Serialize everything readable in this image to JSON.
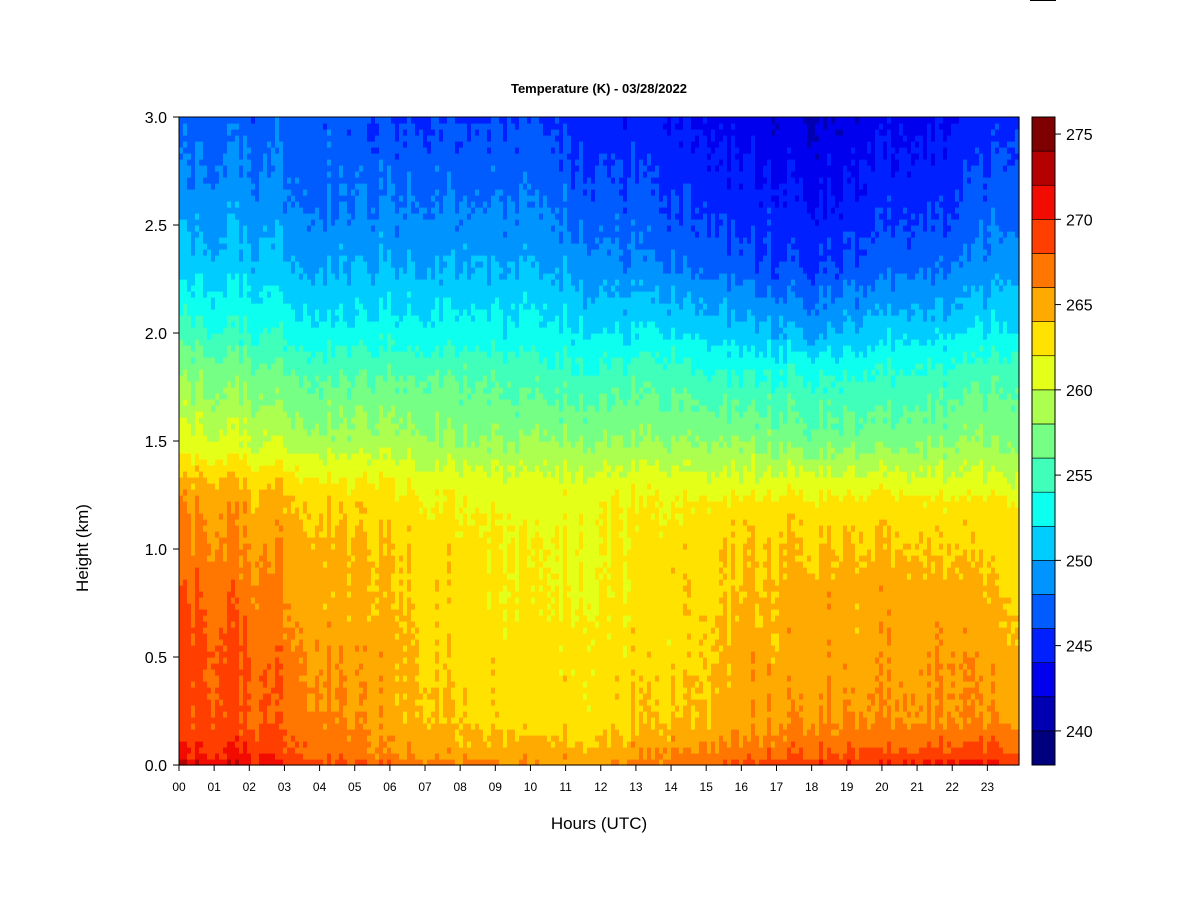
{
  "chart_data": {
    "type": "heatmap",
    "title": "Temperature (K) - 03/28/2022",
    "xlabel": "Hours (UTC)",
    "ylabel": "Height (km)",
    "xlim": [
      0,
      23.9
    ],
    "ylim": [
      0.0,
      3.0
    ],
    "x_tick_labels": [
      "00",
      "01",
      "02",
      "03",
      "04",
      "05",
      "06",
      "07",
      "08",
      "09",
      "10",
      "11",
      "12",
      "13",
      "14",
      "15",
      "16",
      "17",
      "18",
      "19",
      "20",
      "21",
      "22",
      "23"
    ],
    "y_tick_labels": [
      "0.0",
      "0.5",
      "1.0",
      "1.5",
      "2.0",
      "2.5",
      "3.0"
    ],
    "colorbar": {
      "levels": [
        238,
        276
      ],
      "step": 2,
      "tick_labels": [
        "240",
        "245",
        "250",
        "255",
        "260",
        "265",
        "270",
        "275"
      ],
      "colors": [
        "#00007f",
        "#0000b2",
        "#0000ee",
        "#0020ff",
        "#005cff",
        "#0094ff",
        "#00ccff",
        "#0cffef",
        "#3fffbb",
        "#76ff85",
        "#adff4f",
        "#e4ff18",
        "#ffe200",
        "#ffaa00",
        "#ff7700",
        "#ff3f00",
        "#f20c00",
        "#b50000",
        "#7f0000"
      ]
    },
    "profile_heights_km": [
      0.0,
      0.05,
      0.2,
      0.5,
      0.8,
      1.0,
      1.2,
      1.3,
      1.5,
      1.8,
      2.0,
      2.3,
      2.6,
      3.0
    ],
    "profiles": [
      {
        "hour": 0,
        "temps_K": [
          273,
          270,
          269,
          269,
          268,
          267,
          266,
          265,
          261,
          258,
          255,
          251,
          249,
          247
        ]
      },
      {
        "hour": 2,
        "temps_K": [
          271,
          270,
          268,
          268,
          267,
          266,
          265,
          264,
          260,
          257,
          254,
          251,
          249,
          247
        ]
      },
      {
        "hour": 4,
        "temps_K": [
          269,
          268,
          267,
          266,
          265,
          265,
          264,
          263,
          259,
          256,
          253,
          250,
          248,
          247
        ]
      },
      {
        "hour": 6,
        "temps_K": [
          268,
          266,
          265,
          265,
          264,
          264,
          263,
          262,
          259,
          256,
          253,
          250,
          248,
          246
        ]
      },
      {
        "hour": 8,
        "temps_K": [
          267,
          265,
          264,
          263,
          263,
          263,
          262,
          261,
          258,
          256,
          253,
          250,
          248,
          246
        ]
      },
      {
        "hour": 10,
        "temps_K": [
          266,
          265,
          263,
          263,
          262,
          262,
          261,
          261,
          258,
          255,
          253,
          250,
          248,
          246
        ]
      },
      {
        "hour": 12,
        "temps_K": [
          266,
          265,
          263,
          263,
          262,
          262,
          262,
          261,
          258,
          255,
          252,
          249,
          247,
          245
        ]
      },
      {
        "hour": 14,
        "temps_K": [
          267,
          266,
          264,
          263,
          263,
          263,
          262,
          261,
          258,
          255,
          252,
          248,
          246,
          244
        ]
      },
      {
        "hour": 16,
        "temps_K": [
          269,
          267,
          265,
          265,
          264,
          264,
          263,
          261,
          258,
          254,
          251,
          247,
          245,
          243
        ]
      },
      {
        "hour": 18,
        "temps_K": [
          270,
          268,
          266,
          265,
          265,
          264,
          263,
          261,
          257,
          254,
          250,
          246,
          244,
          242
        ]
      },
      {
        "hour": 20,
        "temps_K": [
          270,
          268,
          266,
          265,
          265,
          264,
          263,
          261,
          257,
          254,
          251,
          247,
          245,
          243
        ]
      },
      {
        "hour": 22,
        "temps_K": [
          271,
          269,
          266,
          266,
          265,
          264,
          263,
          261,
          258,
          255,
          252,
          248,
          246,
          244
        ]
      },
      {
        "hour": 23.9,
        "temps_K": [
          270,
          269,
          266,
          265,
          264,
          263,
          263,
          261,
          258,
          256,
          253,
          250,
          248,
          246
        ]
      }
    ]
  }
}
